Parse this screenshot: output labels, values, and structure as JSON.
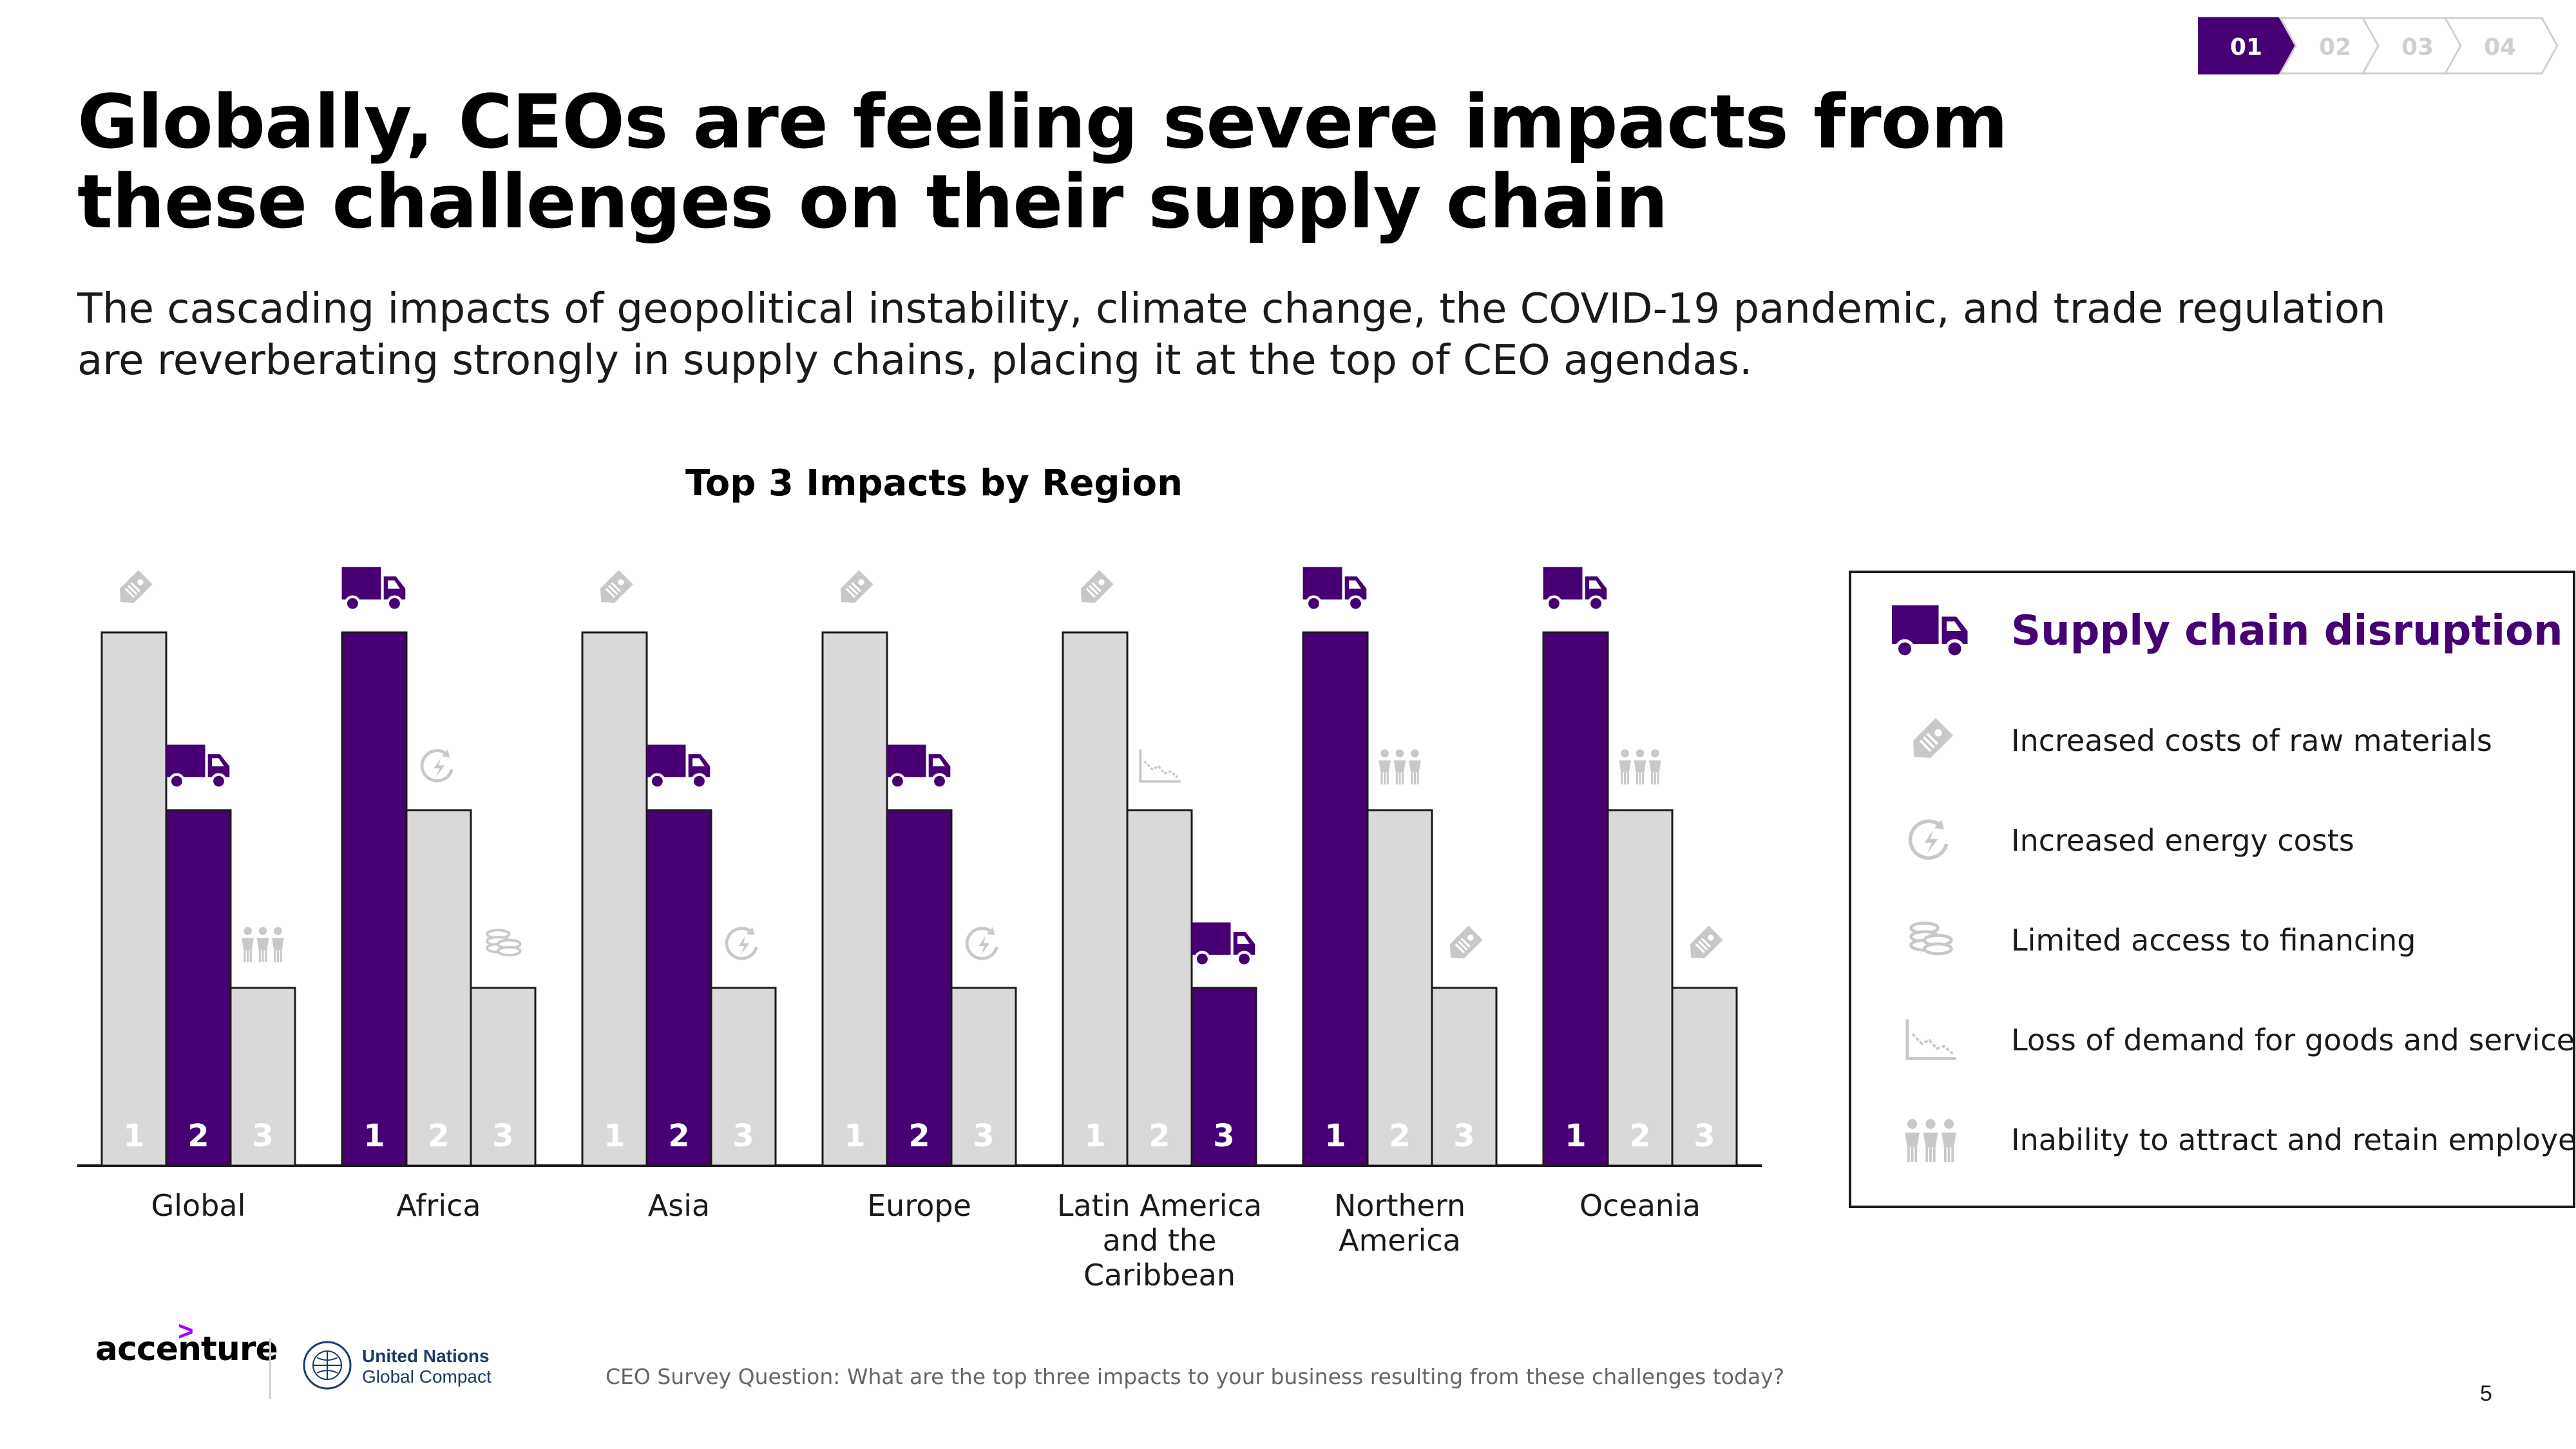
{
  "header": {
    "title": "Globally, CEOs are feeling severe impacts from these challenges on their supply chain",
    "subtitle": "The cascading impacts of geopolitical instability, climate change, the COVID-19 pandemic, and trade regulation are reverberating strongly in supply chains, placing it at the top of CEO agendas.",
    "nav_steps": [
      "01",
      "02",
      "03",
      "04"
    ],
    "active_step": "01"
  },
  "chart_data": {
    "type": "bar",
    "title": "Top 3 Impacts by Region",
    "rank_labels": [
      "1",
      "2",
      "3"
    ],
    "rank_values": [
      3,
      2,
      1
    ],
    "regions": [
      {
        "name": "Global",
        "ranks": [
          "increased-costs-raw-materials",
          "supply-chain-disruption",
          "inability-attract-employees"
        ]
      },
      {
        "name": "Africa",
        "ranks": [
          "supply-chain-disruption",
          "increased-energy-costs",
          "limited-access-financing"
        ]
      },
      {
        "name": "Asia",
        "ranks": [
          "increased-costs-raw-materials",
          "supply-chain-disruption",
          "increased-energy-costs"
        ]
      },
      {
        "name": "Europe",
        "ranks": [
          "increased-costs-raw-materials",
          "supply-chain-disruption",
          "increased-energy-costs"
        ]
      },
      {
        "name": "Latin America and the Caribbean",
        "ranks": [
          "increased-costs-raw-materials",
          "loss-of-demand",
          "supply-chain-disruption"
        ]
      },
      {
        "name": "Northern America",
        "ranks": [
          "supply-chain-disruption",
          "inability-attract-employees",
          "increased-costs-raw-materials"
        ]
      },
      {
        "name": "Oceania",
        "ranks": [
          "supply-chain-disruption",
          "inability-attract-employees",
          "increased-costs-raw-materials"
        ]
      }
    ],
    "highlight_impact": "supply-chain-disruption",
    "colors": {
      "highlight": "#460073",
      "bar": "#d9d9d9",
      "icon_gray": "#c8c8c8",
      "rank_on_gray": "#ffffff"
    }
  },
  "legend": {
    "items": [
      {
        "key": "supply-chain-disruption",
        "label": "Supply chain disruption",
        "icon": "truck-icon",
        "highlight": true
      },
      {
        "key": "increased-costs-raw-materials",
        "label": "Increased costs of raw materials",
        "icon": "price-tag-icon",
        "highlight": false
      },
      {
        "key": "increased-energy-costs",
        "label": "Increased energy costs",
        "icon": "energy-icon",
        "highlight": false
      },
      {
        "key": "limited-access-financing",
        "label": "Limited access to financing",
        "icon": "coins-icon",
        "highlight": false
      },
      {
        "key": "loss-of-demand",
        "label": "Loss of demand for goods and services",
        "icon": "declining-chart-icon",
        "highlight": false
      },
      {
        "key": "inability-attract-employees",
        "label": "Inability to attract and retain employees",
        "icon": "people-icon",
        "highlight": false
      }
    ]
  },
  "footer": {
    "source": "CEO Survey Question: What are the top three impacts to your business resulting from these challenges today?",
    "page_number": "5",
    "brand": "accenture",
    "brand_mark": ">",
    "partner_line1": "United Nations",
    "partner_line2": "Global Compact"
  },
  "colors": {
    "accent": "#460073",
    "nav_active": "#7b00d6",
    "nav_inactive": "#d9d9d9",
    "text": "#000000"
  }
}
